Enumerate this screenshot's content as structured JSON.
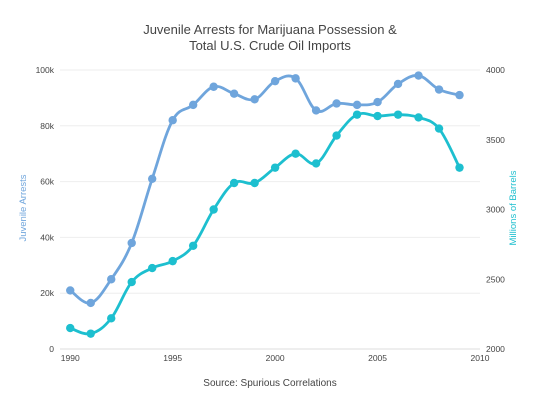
{
  "chart_data": {
    "type": "line",
    "title_lines": [
      "Juvenile Arrests for Marijuana Possession &",
      "Total U.S. Crude Oil Imports"
    ],
    "x": [
      1990,
      1991,
      1992,
      1993,
      1994,
      1995,
      1996,
      1997,
      1998,
      1999,
      2000,
      2001,
      2002,
      2003,
      2004,
      2005,
      2006,
      2007,
      2008,
      2009
    ],
    "xlim": [
      1989.5,
      2010
    ],
    "x_ticks": [
      1990,
      1995,
      2000,
      2005,
      2010
    ],
    "series": [
      {
        "name": "Juvenile Arrests",
        "axis": "left",
        "color": "#6fa5dc",
        "values": [
          21000,
          16500,
          25000,
          38000,
          61000,
          82000,
          87500,
          94000,
          91500,
          89500,
          96000,
          97000,
          85500,
          88000,
          87500,
          88500,
          95000,
          98000,
          93000,
          91000
        ]
      },
      {
        "name": "Millions of Barrels",
        "axis": "right",
        "color": "#1dbfcf",
        "values": [
          2150,
          2110,
          2220,
          2480,
          2580,
          2630,
          2740,
          3000,
          3190,
          3190,
          3300,
          3400,
          3330,
          3530,
          3680,
          3670,
          3680,
          3660,
          3580,
          3300
        ]
      }
    ],
    "y_left": {
      "label": "Juvenile Arrests",
      "ylim": [
        0,
        100000
      ],
      "ticks": [
        0,
        20000,
        40000,
        60000,
        80000,
        100000
      ],
      "tick_labels": [
        "0",
        "20k",
        "40k",
        "60k",
        "80k",
        "100k"
      ]
    },
    "y_right": {
      "label": "Millions of Barrels",
      "ylim": [
        2000,
        4000
      ],
      "ticks": [
        2000,
        2500,
        3000,
        3500,
        4000
      ],
      "tick_labels": [
        "2000",
        "2500",
        "3000",
        "3500",
        "4000"
      ]
    },
    "grid": true,
    "legend": "none",
    "source": "Source: Spurious Correlations"
  }
}
